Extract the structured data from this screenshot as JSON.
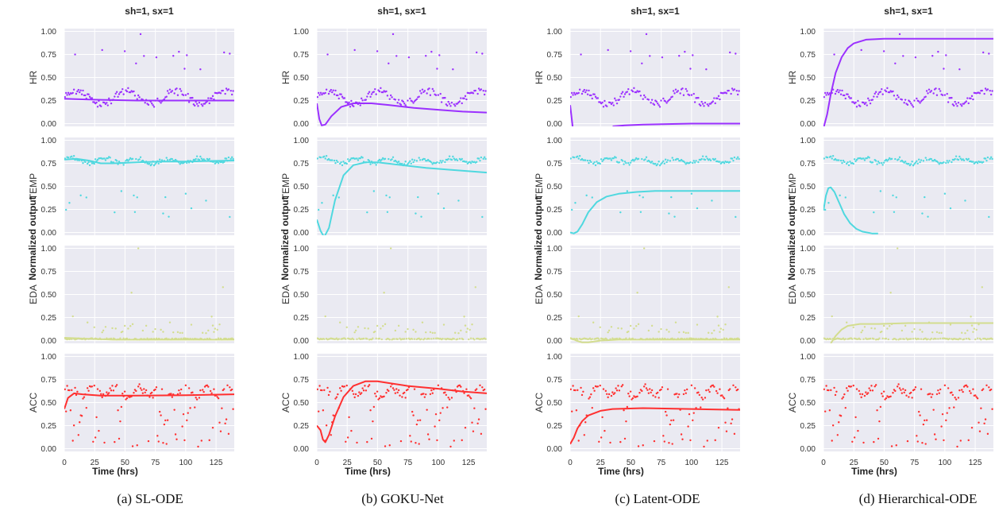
{
  "chart_data": [
    {
      "type": "scatter",
      "title": "sh=1, sx=1",
      "caption": "(a) SL-ODE",
      "xlabel": "Time (hrs)",
      "ylabel": "Normalized output",
      "xlim": [
        0,
        140
      ],
      "xticks": [
        0,
        25,
        50,
        75,
        100,
        125
      ],
      "ylim": [
        -0.03,
        1.03
      ],
      "yticks": [
        0.0,
        0.25,
        0.5,
        0.75,
        1.0
      ],
      "ytick_labels": [
        "0.00",
        "0.25",
        "0.50",
        "0.75",
        "1.00"
      ],
      "grid": true,
      "series": [
        {
          "name": "HR",
          "color": "#9b30ff",
          "fit": [
            [
              0,
              0.27
            ],
            [
              20,
              0.26
            ],
            [
              40,
              0.255
            ],
            [
              60,
              0.25
            ],
            [
              80,
              0.25
            ],
            [
              100,
              0.25
            ],
            [
              120,
              0.25
            ],
            [
              140,
              0.25
            ]
          ]
        },
        {
          "name": "TEMP",
          "color": "#4fd8df",
          "fit": [
            [
              0,
              0.79
            ],
            [
              10,
              0.8
            ],
            [
              20,
              0.78
            ],
            [
              30,
              0.75
            ],
            [
              40,
              0.75
            ],
            [
              60,
              0.76
            ],
            [
              80,
              0.77
            ],
            [
              100,
              0.77
            ],
            [
              140,
              0.78
            ]
          ]
        },
        {
          "name": "EDA",
          "color": "#d3dd8f",
          "fit": [
            [
              0,
              0.03
            ],
            [
              20,
              0.02
            ],
            [
              40,
              0.01
            ],
            [
              60,
              0.01
            ],
            [
              140,
              0.01
            ]
          ]
        },
        {
          "name": "ACC",
          "color": "#ff3030",
          "fit": [
            [
              0,
              0.43
            ],
            [
              3,
              0.55
            ],
            [
              8,
              0.6
            ],
            [
              15,
              0.59
            ],
            [
              30,
              0.575
            ],
            [
              60,
              0.575
            ],
            [
              100,
              0.58
            ],
            [
              140,
              0.59
            ]
          ]
        }
      ]
    },
    {
      "type": "scatter",
      "title": "sh=1, sx=1",
      "caption": "(b) GOKU-Net",
      "xlabel": "Time (hrs)",
      "ylabel": "Normalized output",
      "xlim": [
        0,
        140
      ],
      "xticks": [
        0,
        25,
        50,
        75,
        100,
        125
      ],
      "ylim": [
        -0.03,
        1.03
      ],
      "yticks": [
        0.0,
        0.25,
        0.5,
        0.75,
        1.0
      ],
      "ytick_labels": [
        "0.00",
        "0.25",
        "0.50",
        "0.75",
        "1.00"
      ],
      "grid": true,
      "series": [
        {
          "name": "HR",
          "color": "#9b30ff",
          "fit": [
            [
              0,
              0.22
            ],
            [
              2,
              0.05
            ],
            [
              4,
              -0.02
            ],
            [
              7,
              -0.01
            ],
            [
              12,
              0.08
            ],
            [
              20,
              0.18
            ],
            [
              30,
              0.22
            ],
            [
              45,
              0.22
            ],
            [
              60,
              0.2
            ],
            [
              80,
              0.17
            ],
            [
              100,
              0.15
            ],
            [
              120,
              0.13
            ],
            [
              140,
              0.12
            ]
          ]
        },
        {
          "name": "TEMP",
          "color": "#4fd8df",
          "fit": [
            [
              0,
              0.14
            ],
            [
              3,
              0.02
            ],
            [
              6,
              -0.05
            ],
            [
              10,
              0.05
            ],
            [
              15,
              0.35
            ],
            [
              22,
              0.62
            ],
            [
              30,
              0.73
            ],
            [
              40,
              0.76
            ],
            [
              50,
              0.76
            ],
            [
              70,
              0.73
            ],
            [
              90,
              0.7
            ],
            [
              110,
              0.68
            ],
            [
              140,
              0.65
            ]
          ]
        },
        {
          "name": "EDA",
          "color": "#d3dd8f",
          "fit": []
        },
        {
          "name": "ACC",
          "color": "#ff3030",
          "fit": [
            [
              0,
              0.25
            ],
            [
              3,
              0.2
            ],
            [
              5,
              0.1
            ],
            [
              7,
              0.07
            ],
            [
              10,
              0.15
            ],
            [
              15,
              0.35
            ],
            [
              22,
              0.56
            ],
            [
              30,
              0.68
            ],
            [
              40,
              0.73
            ],
            [
              50,
              0.73
            ],
            [
              60,
              0.71
            ],
            [
              75,
              0.68
            ],
            [
              100,
              0.65
            ],
            [
              120,
              0.62
            ],
            [
              140,
              0.6
            ]
          ]
        }
      ]
    },
    {
      "type": "scatter",
      "title": "sh=1, sx=1",
      "caption": "(c) Latent-ODE",
      "xlabel": "Time (hrs)",
      "ylabel": "Normalized output",
      "xlim": [
        0,
        140
      ],
      "xticks": [
        0,
        25,
        50,
        75,
        100,
        125
      ],
      "ylim": [
        -0.03,
        1.03
      ],
      "yticks": [
        0.0,
        0.25,
        0.5,
        0.75,
        1.0
      ],
      "ytick_labels": [
        "0.00",
        "0.25",
        "0.50",
        "0.75",
        "1.00"
      ],
      "grid": true,
      "series": [
        {
          "name": "HR",
          "color": "#9b30ff",
          "fit": [
            [
              0,
              0.2
            ],
            [
              2,
              -0.03
            ]
          ],
          "fit2": [
            [
              35,
              -0.03
            ],
            [
              45,
              -0.02
            ],
            [
              60,
              -0.01
            ],
            [
              80,
              -0.005
            ],
            [
              100,
              0.0
            ],
            [
              140,
              0.0
            ]
          ]
        },
        {
          "name": "TEMP",
          "color": "#4fd8df",
          "fit": [
            [
              0,
              0.0
            ],
            [
              3,
              -0.01
            ],
            [
              6,
              0.01
            ],
            [
              10,
              0.09
            ],
            [
              15,
              0.22
            ],
            [
              22,
              0.33
            ],
            [
              30,
              0.39
            ],
            [
              40,
              0.42
            ],
            [
              55,
              0.44
            ],
            [
              70,
              0.45
            ],
            [
              100,
              0.45
            ],
            [
              140,
              0.45
            ]
          ]
        },
        {
          "name": "EDA",
          "color": "#d3dd8f",
          "fit": [
            [
              0,
              0.03
            ],
            [
              5,
              0.0
            ],
            [
              10,
              -0.02
            ],
            [
              15,
              -0.02
            ],
            [
              25,
              0.0
            ],
            [
              40,
              0.01
            ],
            [
              60,
              0.01
            ],
            [
              140,
              0.01
            ]
          ]
        },
        {
          "name": "ACC",
          "color": "#ff3030",
          "fit": [
            [
              0,
              0.05
            ],
            [
              3,
              0.12
            ],
            [
              6,
              0.22
            ],
            [
              10,
              0.3
            ],
            [
              15,
              0.36
            ],
            [
              25,
              0.41
            ],
            [
              35,
              0.43
            ],
            [
              60,
              0.44
            ],
            [
              100,
              0.43
            ],
            [
              140,
              0.42
            ]
          ]
        }
      ]
    },
    {
      "type": "scatter",
      "title": "sh=1, sx=1",
      "caption": "(d) Hierarchical-ODE",
      "xlabel": "Time (hrs)",
      "ylabel": "Normalized output",
      "xlim": [
        0,
        140
      ],
      "xticks": [
        0,
        25,
        50,
        75,
        100,
        125
      ],
      "ylim": [
        -0.03,
        1.03
      ],
      "yticks": [
        0.0,
        0.25,
        0.5,
        0.75,
        1.0
      ],
      "ytick_labels": [
        "0.00",
        "0.25",
        "0.50",
        "0.75",
        "1.00"
      ],
      "grid": true,
      "series": [
        {
          "name": "HR",
          "color": "#9b30ff",
          "fit": [
            [
              0,
              -0.05
            ],
            [
              3,
              0.1
            ],
            [
              6,
              0.32
            ],
            [
              10,
              0.55
            ],
            [
              15,
              0.72
            ],
            [
              20,
              0.82
            ],
            [
              25,
              0.87
            ],
            [
              35,
              0.91
            ],
            [
              50,
              0.92
            ],
            [
              80,
              0.92
            ],
            [
              140,
              0.92
            ]
          ]
        },
        {
          "name": "TEMP",
          "color": "#4fd8df",
          "fit": [
            [
              0,
              0.24
            ],
            [
              2,
              0.4
            ],
            [
              4,
              0.48
            ],
            [
              6,
              0.49
            ],
            [
              9,
              0.44
            ],
            [
              13,
              0.32
            ],
            [
              17,
              0.2
            ],
            [
              22,
              0.1
            ],
            [
              27,
              0.04
            ],
            [
              32,
              0.01
            ],
            [
              40,
              -0.01
            ],
            [
              45,
              -0.01
            ]
          ]
        },
        {
          "name": "EDA",
          "color": "#d3dd8f",
          "fit": [
            [
              6,
              -0.03
            ],
            [
              10,
              0.05
            ],
            [
              15,
              0.12
            ],
            [
              20,
              0.16
            ],
            [
              30,
              0.18
            ],
            [
              45,
              0.18
            ],
            [
              70,
              0.19
            ],
            [
              100,
              0.19
            ],
            [
              140,
              0.19
            ]
          ]
        },
        {
          "name": "ACC",
          "color": "#ff3030",
          "fit": []
        }
      ]
    }
  ]
}
